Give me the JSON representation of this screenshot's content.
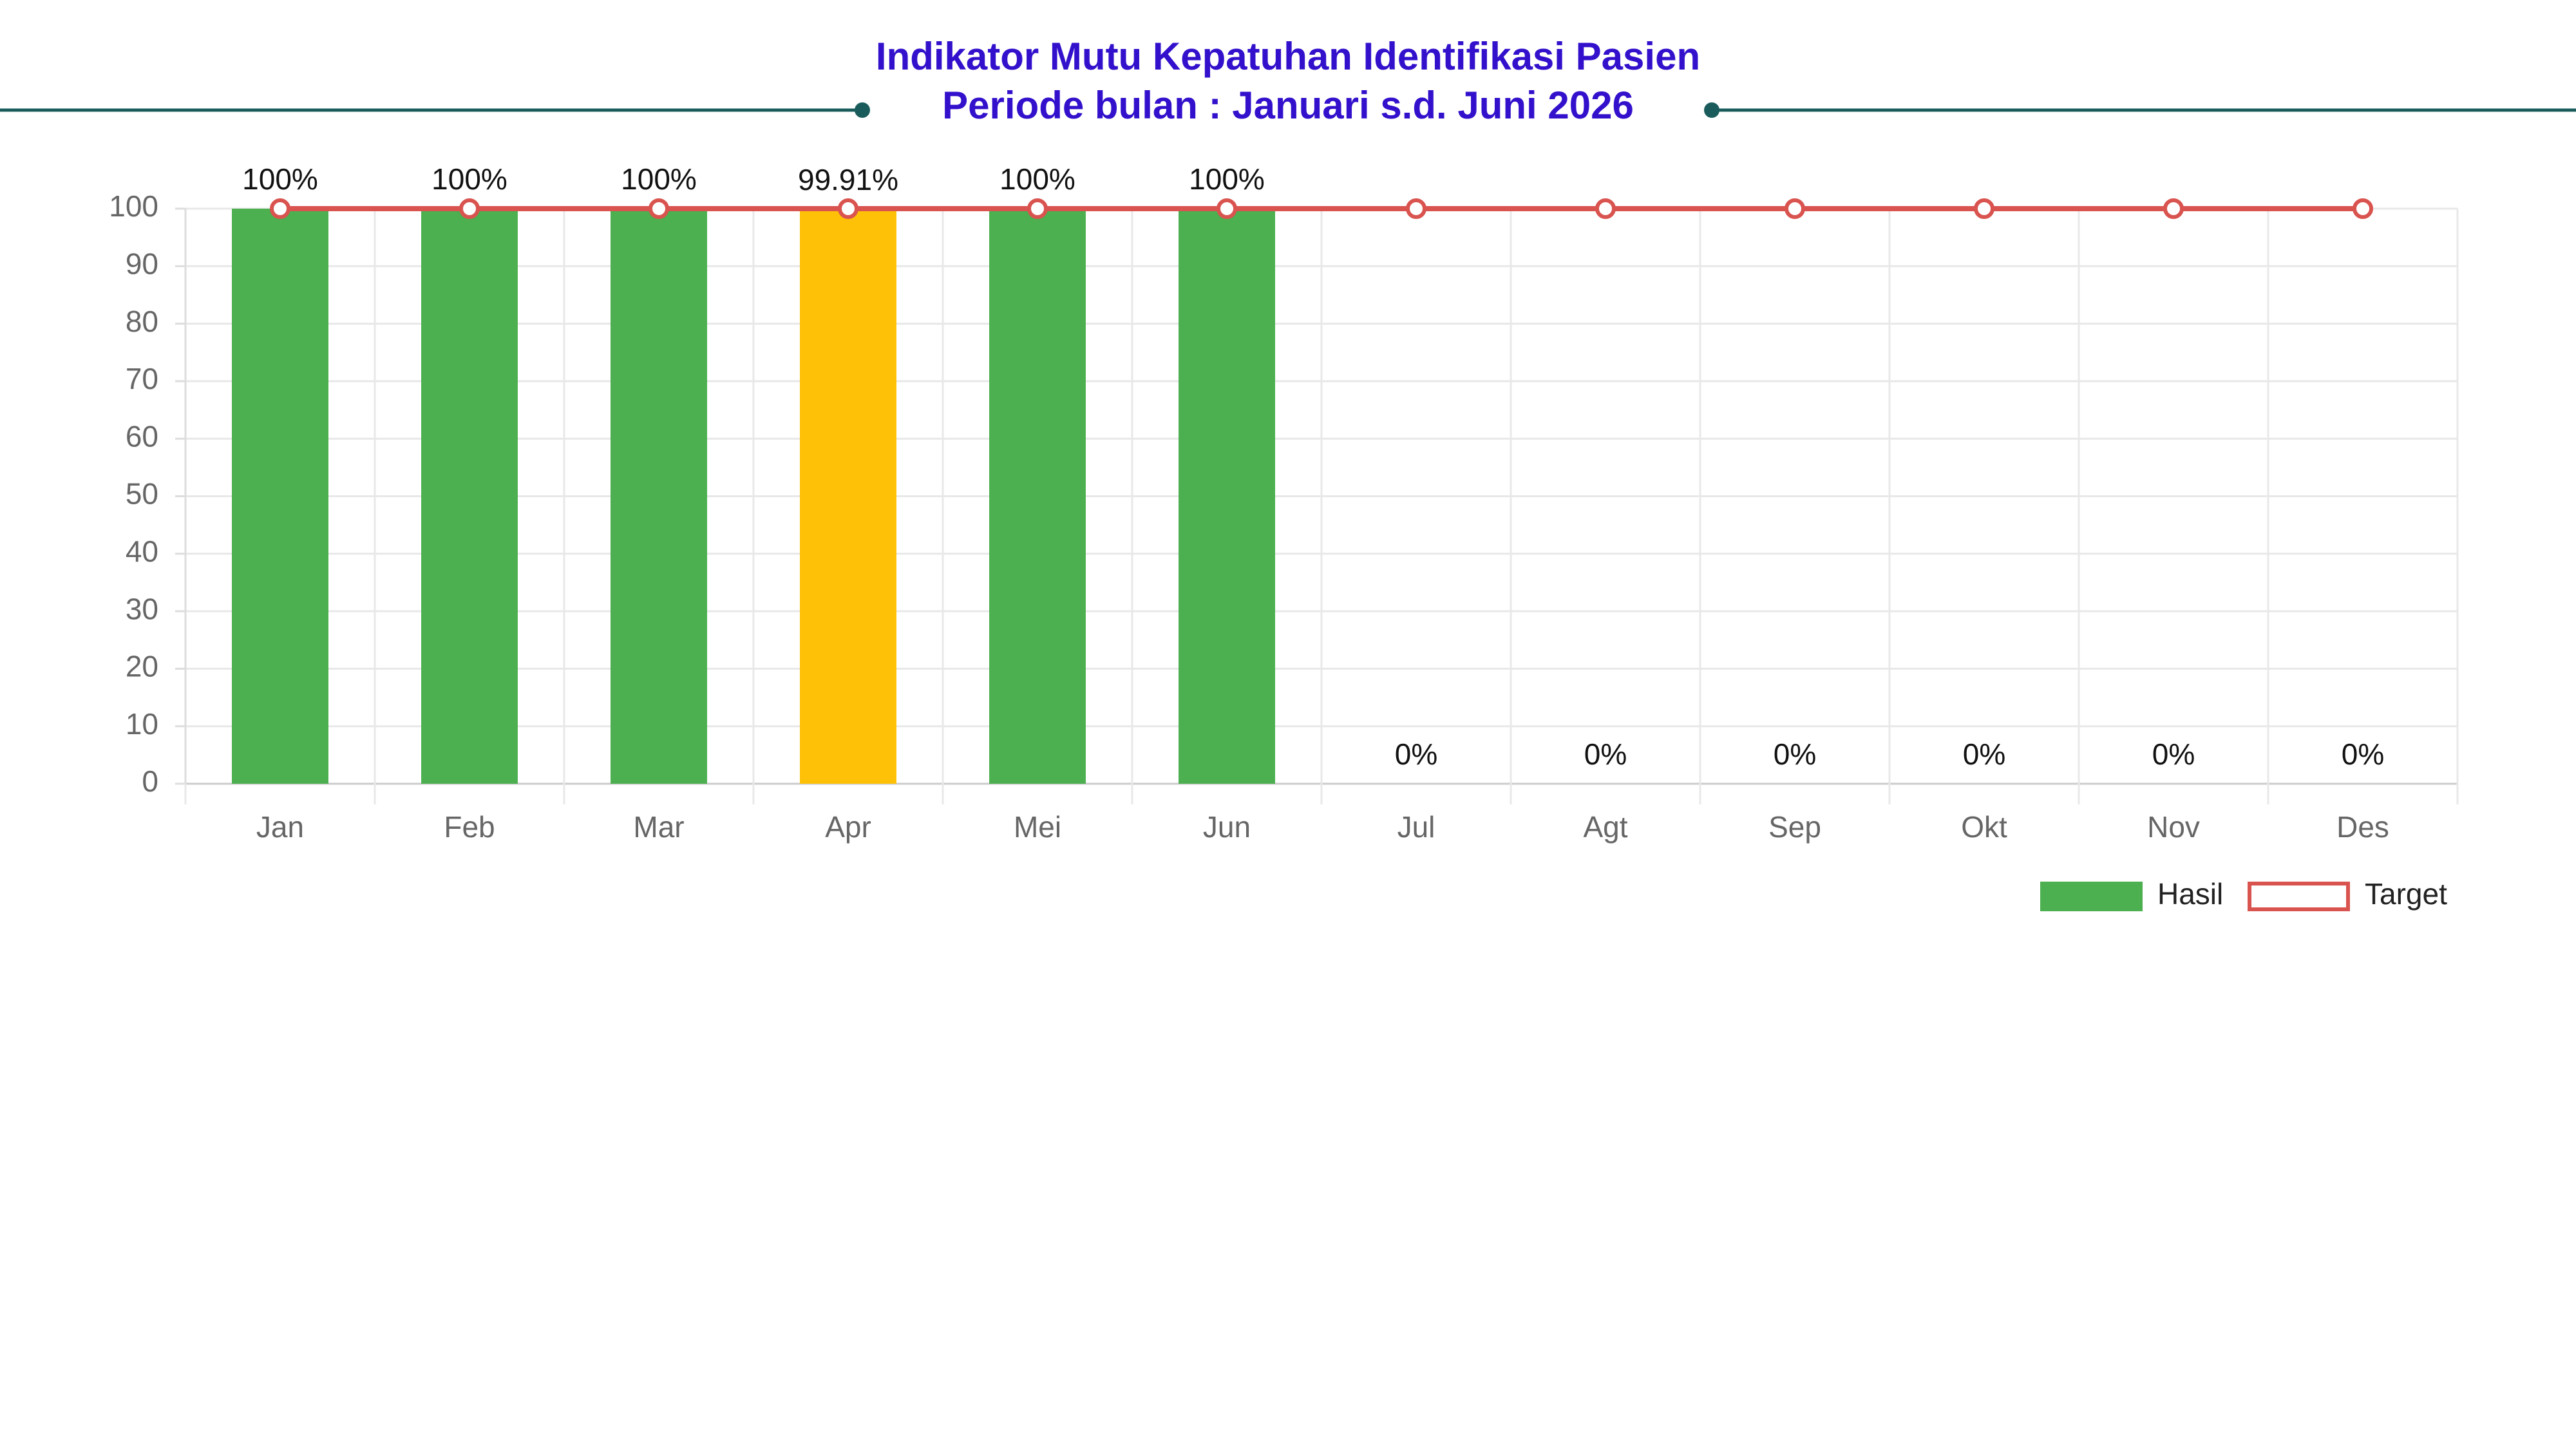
{
  "chart_data": {
    "type": "bar",
    "title": "Indikator Mutu Kepatuhan Identifikasi Pasien",
    "subtitle": "Periode bulan : Januari s.d. Juni 2026",
    "categories": [
      "Jan",
      "Feb",
      "Mar",
      "Apr",
      "Mei",
      "Jun",
      "Jul",
      "Agt",
      "Sep",
      "Okt",
      "Nov",
      "Des"
    ],
    "series": [
      {
        "name": "Hasil",
        "type": "bar",
        "color": "#4caf50",
        "colors": [
          "#4caf50",
          "#4caf50",
          "#4caf50",
          "#ffc107",
          "#4caf50",
          "#4caf50",
          "#4caf50",
          "#4caf50",
          "#4caf50",
          "#4caf50",
          "#4caf50",
          "#4caf50"
        ],
        "values": [
          100,
          100,
          100,
          99.91,
          100,
          100,
          0,
          0,
          0,
          0,
          0,
          0
        ],
        "value_labels": [
          "100%",
          "100%",
          "100%",
          "99.91%",
          "100%",
          "100%",
          "0%",
          "0%",
          "0%",
          "0%",
          "0%",
          "0%"
        ]
      },
      {
        "name": "Target",
        "type": "line",
        "color": "#d9534f",
        "values": [
          100,
          100,
          100,
          100,
          100,
          100,
          100,
          100,
          100,
          100,
          100,
          100
        ]
      }
    ],
    "ylim": [
      0,
      100
    ],
    "yticks": [
      0,
      10,
      20,
      30,
      40,
      50,
      60,
      70,
      80,
      90,
      100
    ],
    "grid": true,
    "legend": "bottom-right"
  }
}
